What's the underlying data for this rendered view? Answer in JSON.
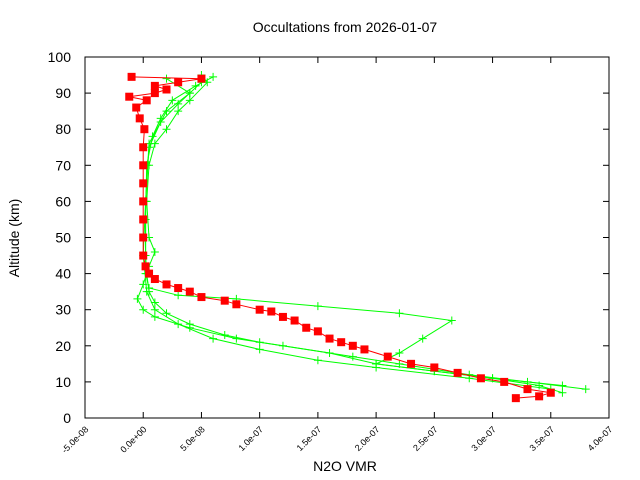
{
  "chart_data": {
    "type": "scatter",
    "title": "Occultations from 2026-01-07",
    "xlabel": "N2O VMR",
    "ylabel": "Altitude (km)",
    "xlim": [
      -5e-08,
      4e-07
    ],
    "ylim": [
      0,
      100
    ],
    "x_ticks": [
      "-5.0e-08",
      "0.0e+00",
      "5.0e-08",
      "1.0e-07",
      "1.5e-07",
      "2.0e-07",
      "2.5e-07",
      "3.0e-07",
      "3.5e-07",
      "4.0e-07"
    ],
    "x_tick_values": [
      -5e-08,
      0,
      5e-08,
      1e-07,
      1.5e-07,
      2e-07,
      2.5e-07,
      3e-07,
      3.5e-07,
      4e-07
    ],
    "y_ticks": [
      "0",
      "10",
      "20",
      "30",
      "40",
      "50",
      "60",
      "70",
      "80",
      "90",
      "100"
    ],
    "y_tick_values": [
      0,
      10,
      20,
      30,
      40,
      50,
      60,
      70,
      80,
      90,
      100
    ],
    "grid": false,
    "legend": "none",
    "series": [
      {
        "color": "#00ff00",
        "marker": "plus",
        "points": [
          [
            3.8e-07,
            8
          ],
          [
            3.3e-07,
            10
          ],
          [
            2.8e-07,
            12
          ],
          [
            2.2e-07,
            15
          ],
          [
            1.8e-07,
            17
          ],
          [
            1.2e-07,
            20
          ],
          [
            8e-08,
            22
          ],
          [
            4e-08,
            25
          ],
          [
            1e-08,
            28
          ],
          [
            0,
            30
          ],
          [
            -5e-09,
            33
          ],
          [
            0,
            37
          ],
          [
            5e-09,
            42
          ],
          [
            1e-08,
            46
          ],
          [
            5e-09,
            50
          ],
          [
            3e-09,
            60
          ],
          [
            5e-09,
            70
          ],
          [
            1e-08,
            76
          ],
          [
            2e-08,
            80
          ],
          [
            3e-08,
            85
          ],
          [
            4e-08,
            88
          ],
          [
            5.5e-08,
            93
          ],
          [
            5e-08,
            95
          ]
        ]
      },
      {
        "color": "#00ff00",
        "marker": "plus",
        "points": [
          [
            3.6e-07,
            7
          ],
          [
            3.4e-07,
            9
          ],
          [
            3e-07,
            11
          ],
          [
            2.5e-07,
            13
          ],
          [
            2e-07,
            15
          ],
          [
            1.6e-07,
            18
          ],
          [
            1e-07,
            21
          ],
          [
            7e-08,
            23
          ],
          [
            4e-08,
            26
          ],
          [
            2e-08,
            29
          ],
          [
            1e-08,
            32
          ],
          [
            5e-09,
            35
          ],
          [
            3e-09,
            40
          ],
          [
            2e-09,
            45
          ],
          [
            2e-09,
            55
          ],
          [
            3e-09,
            70
          ],
          [
            8e-09,
            78
          ],
          [
            1.5e-08,
            83
          ],
          [
            2.5e-08,
            88
          ],
          [
            4.5e-08,
            92
          ],
          [
            6e-08,
            94.5
          ]
        ]
      },
      {
        "color": "#00ff00",
        "marker": "plus",
        "points": [
          [
            3.6e-07,
            9
          ],
          [
            3e-07,
            11
          ],
          [
            2.5e-07,
            13
          ],
          [
            2e-07,
            15
          ],
          [
            2.2e-07,
            18
          ],
          [
            2.4e-07,
            22
          ],
          [
            2.65e-07,
            27
          ],
          [
            2.2e-07,
            29
          ],
          [
            1.5e-07,
            31
          ],
          [
            8e-08,
            33
          ],
          [
            3e-08,
            34
          ],
          [
            5e-09,
            36
          ],
          [
            2e-09,
            40
          ],
          [
            2e-09,
            60
          ],
          [
            5e-09,
            75
          ],
          [
            1.5e-08,
            82
          ],
          [
            3e-08,
            87
          ],
          [
            4e-08,
            90
          ],
          [
            5e-08,
            93
          ]
        ]
      },
      {
        "color": "#00ff00",
        "marker": "plus",
        "points": [
          [
            3.5e-07,
            8
          ],
          [
            2.8e-07,
            11
          ],
          [
            2e-07,
            14
          ],
          [
            1.5e-07,
            16
          ],
          [
            1e-07,
            19
          ],
          [
            6e-08,
            22
          ],
          [
            3e-08,
            26
          ],
          [
            1e-08,
            30
          ],
          [
            3e-09,
            35
          ],
          [
            0,
            45
          ],
          [
            2e-09,
            60
          ],
          [
            5e-09,
            76
          ],
          [
            2e-08,
            85
          ],
          [
            4e-08,
            90
          ],
          [
            2e-08,
            94
          ]
        ]
      },
      {
        "color": "#ff0000",
        "marker": "square",
        "points": [
          [
            3.2e-07,
            5.5
          ],
          [
            3.4e-07,
            6
          ],
          [
            3.5e-07,
            7
          ],
          [
            3.3e-07,
            8
          ],
          [
            3.1e-07,
            10
          ],
          [
            2.9e-07,
            11
          ],
          [
            2.7e-07,
            12.5
          ],
          [
            2.5e-07,
            14
          ],
          [
            2.3e-07,
            15
          ],
          [
            2.1e-07,
            17
          ],
          [
            1.9e-07,
            19
          ],
          [
            1.8e-07,
            20
          ],
          [
            1.7e-07,
            21
          ],
          [
            1.6e-07,
            22
          ],
          [
            1.5e-07,
            24
          ],
          [
            1.4e-07,
            25
          ],
          [
            1.3e-07,
            27
          ],
          [
            1.2e-07,
            28
          ],
          [
            1.1e-07,
            29.5
          ],
          [
            1e-07,
            30
          ],
          [
            8e-08,
            31.5
          ],
          [
            7e-08,
            32.5
          ],
          [
            5e-08,
            33.5
          ],
          [
            4e-08,
            35
          ],
          [
            3e-08,
            36
          ],
          [
            2e-08,
            37
          ],
          [
            1e-08,
            38.5
          ],
          [
            5e-09,
            40
          ],
          [
            2e-09,
            42
          ],
          [
            0,
            45
          ],
          [
            0,
            50
          ],
          [
            0,
            55
          ],
          [
            0,
            60
          ],
          [
            0,
            65
          ],
          [
            0,
            70
          ],
          [
            0,
            75
          ],
          [
            1e-09,
            80
          ],
          [
            -3e-09,
            83
          ],
          [
            -6e-09,
            86
          ],
          [
            3e-09,
            88
          ],
          [
            -1.2e-08,
            89
          ],
          [
            1e-08,
            90
          ],
          [
            2e-08,
            91
          ],
          [
            1e-08,
            92
          ],
          [
            3e-08,
            93
          ],
          [
            5e-08,
            94
          ],
          [
            -1e-08,
            94.5
          ]
        ]
      }
    ]
  }
}
